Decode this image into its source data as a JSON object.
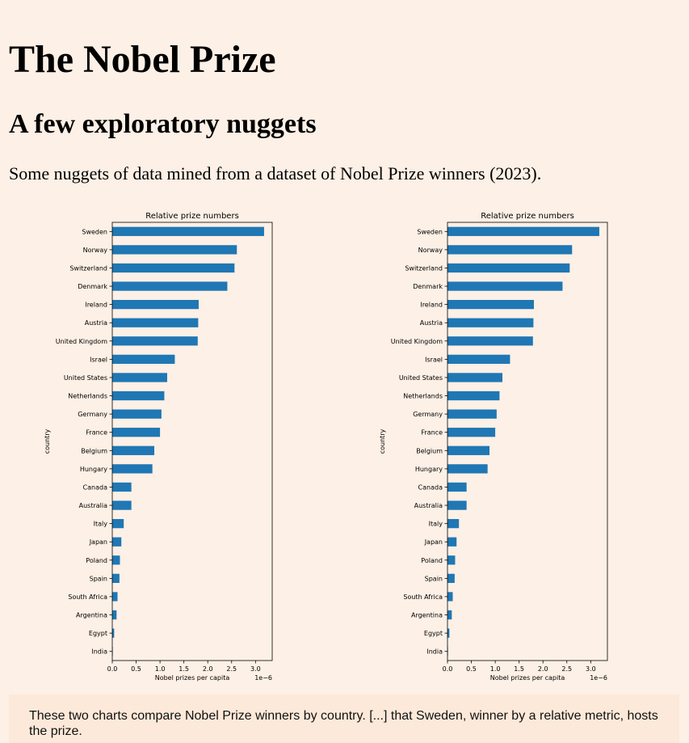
{
  "page": {
    "title": "The Nobel Prize",
    "subtitle": "A few exploratory nuggets",
    "intro": "Some nuggets of data mined from a dataset of Nobel Prize winners (2023).",
    "caption": "These two charts compare Nobel Prize winners by country. [...] that Sweden, winner by a relative metric, hosts the prize."
  },
  "colors": {
    "background": "#fdf0e6",
    "caption_background": "#fde9d9",
    "bar": "#1f77b4"
  },
  "chart_data": [
    {
      "type": "bar",
      "orientation": "horizontal",
      "title": "Relative prize numbers",
      "xlabel": "Nobel prizes per capita",
      "ylabel": "country",
      "x_multiplier_label": "1e−6",
      "xlim": [
        0,
        3.35
      ],
      "xticks": [
        "0.0",
        "0.5",
        "1.0",
        "1.5",
        "2.0",
        "2.5",
        "3.0"
      ],
      "grid": false,
      "categories": [
        "Sweden",
        "Norway",
        "Switzerland",
        "Denmark",
        "Ireland",
        "Austria",
        "United Kingdom",
        "Israel",
        "United States",
        "Netherlands",
        "Germany",
        "France",
        "Belgium",
        "Hungary",
        "Canada",
        "Australia",
        "Italy",
        "Japan",
        "Poland",
        "Spain",
        "South Africa",
        "Argentina",
        "Egypt",
        "India"
      ],
      "values": [
        3.18,
        2.61,
        2.56,
        2.41,
        1.81,
        1.8,
        1.79,
        1.31,
        1.15,
        1.09,
        1.03,
        1.0,
        0.88,
        0.84,
        0.4,
        0.4,
        0.24,
        0.19,
        0.16,
        0.15,
        0.11,
        0.09,
        0.04,
        0.01
      ]
    },
    {
      "type": "bar",
      "orientation": "horizontal",
      "title": "Relative prize numbers",
      "xlabel": "Nobel prizes per capita",
      "ylabel": "country",
      "x_multiplier_label": "1e−6",
      "xlim": [
        0,
        3.35
      ],
      "xticks": [
        "0.0",
        "0.5",
        "1.0",
        "1.5",
        "2.0",
        "2.5",
        "3.0"
      ],
      "grid": false,
      "categories": [
        "Sweden",
        "Norway",
        "Switzerland",
        "Denmark",
        "Ireland",
        "Austria",
        "United Kingdom",
        "Israel",
        "United States",
        "Netherlands",
        "Germany",
        "France",
        "Belgium",
        "Hungary",
        "Canada",
        "Australia",
        "Italy",
        "Japan",
        "Poland",
        "Spain",
        "South Africa",
        "Argentina",
        "Egypt",
        "India"
      ],
      "values": [
        3.18,
        2.61,
        2.56,
        2.41,
        1.81,
        1.8,
        1.79,
        1.31,
        1.15,
        1.09,
        1.03,
        1.0,
        0.88,
        0.84,
        0.4,
        0.4,
        0.24,
        0.19,
        0.16,
        0.15,
        0.11,
        0.09,
        0.04,
        0.01
      ]
    }
  ]
}
